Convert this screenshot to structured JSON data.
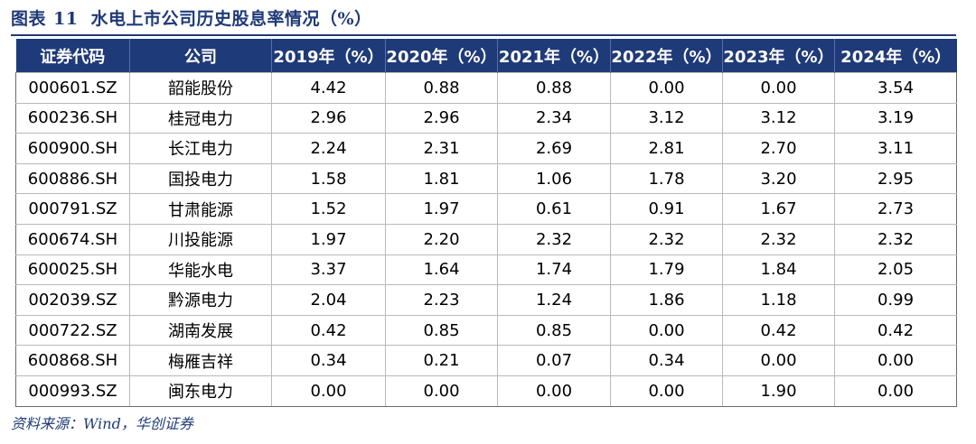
{
  "figure": {
    "label": "图表",
    "number": "11",
    "title": "水电上市公司历史股息率情况（%）"
  },
  "table": {
    "headers": [
      "证券代码",
      "公司",
      "2019年（%）",
      "2020年（%）",
      "2021年（%）",
      "2022年（%）",
      "2023年（%）",
      "2024年（%）"
    ],
    "rows": [
      [
        "000601.SZ",
        "韶能股份",
        "4.42",
        "0.88",
        "0.88",
        "0.00",
        "0.00",
        "3.54"
      ],
      [
        "600236.SH",
        "桂冠电力",
        "2.96",
        "2.96",
        "2.34",
        "3.12",
        "3.12",
        "3.19"
      ],
      [
        "600900.SH",
        "长江电力",
        "2.24",
        "2.31",
        "2.69",
        "2.81",
        "2.70",
        "3.11"
      ],
      [
        "600886.SH",
        "国投电力",
        "1.58",
        "1.81",
        "1.06",
        "1.78",
        "3.20",
        "2.95"
      ],
      [
        "000791.SZ",
        "甘肃能源",
        "1.52",
        "1.97",
        "0.61",
        "0.91",
        "1.67",
        "2.73"
      ],
      [
        "600674.SH",
        "川投能源",
        "1.97",
        "2.20",
        "2.32",
        "2.32",
        "2.32",
        "2.32"
      ],
      [
        "600025.SH",
        "华能水电",
        "3.37",
        "1.64",
        "1.74",
        "1.79",
        "1.84",
        "2.05"
      ],
      [
        "002039.SZ",
        "黔源电力",
        "2.04",
        "2.23",
        "1.24",
        "1.86",
        "1.18",
        "0.99"
      ],
      [
        "000722.SZ",
        "湖南发展",
        "0.42",
        "0.85",
        "0.85",
        "0.00",
        "0.42",
        "0.42"
      ],
      [
        "600868.SH",
        "梅雁吉祥",
        "0.34",
        "0.21",
        "0.07",
        "0.34",
        "0.00",
        "0.00"
      ],
      [
        "000993.SZ",
        "闽东电力",
        "0.00",
        "0.00",
        "0.00",
        "0.00",
        "1.90",
        "0.00"
      ]
    ]
  },
  "source": "资料来源：Wind，华创证券",
  "colors": {
    "header_bg": "#1f3a78",
    "title_text": "#1f3a78"
  }
}
